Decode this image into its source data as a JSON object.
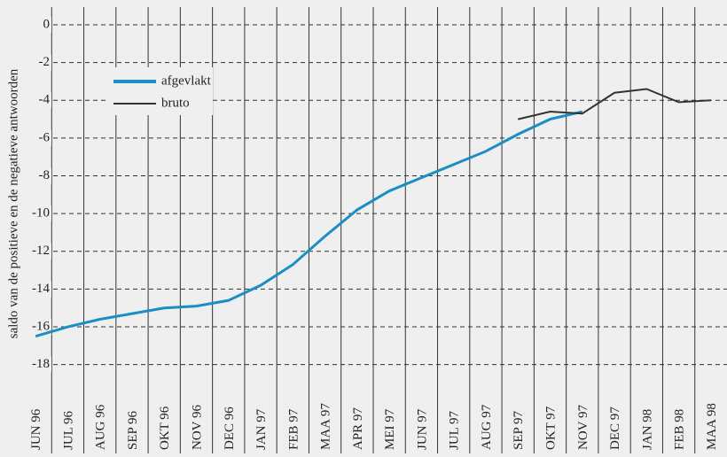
{
  "chart_data": {
    "type": "line",
    "y_label": "saldo van de positieve en de negatieve antwoorden",
    "categories": [
      "JUN 96",
      "JUL 96",
      "AUG 96",
      "SEP 96",
      "OKT 96",
      "NOV 96",
      "DEC 96",
      "JAN 97",
      "FEB 97",
      "MAA 97",
      "APR 97",
      "MEI 97",
      "JUN 97",
      "JUL 97",
      "AUG 97",
      "SEP 97",
      "OKT 97",
      "NOV 97",
      "DEC 97",
      "JAN 98",
      "FEB 98",
      "MAA 98"
    ],
    "series": [
      {
        "name": "afgevlakt",
        "color": "#1b8ec4",
        "values": [
          -16.5,
          -16.0,
          -15.6,
          -15.3,
          -15.0,
          -14.9,
          -14.6,
          -13.8,
          -12.7,
          -11.2,
          -9.8,
          -8.8,
          -8.1,
          -7.4,
          -6.7,
          -5.8,
          -5.0,
          -4.6,
          null,
          null,
          null,
          null
        ]
      },
      {
        "name": "bruto",
        "color": "#333333",
        "values": [
          null,
          null,
          null,
          null,
          null,
          null,
          null,
          null,
          null,
          null,
          null,
          null,
          null,
          null,
          null,
          -5.0,
          -4.6,
          -4.7,
          -3.6,
          -3.4,
          -4.1,
          -4.0
        ]
      }
    ],
    "ylim": [
      -19,
      1
    ],
    "yticks": [
      0,
      -2,
      -4,
      -6,
      -8,
      -10,
      -12,
      -14,
      -16,
      -18
    ],
    "grid": true
  }
}
